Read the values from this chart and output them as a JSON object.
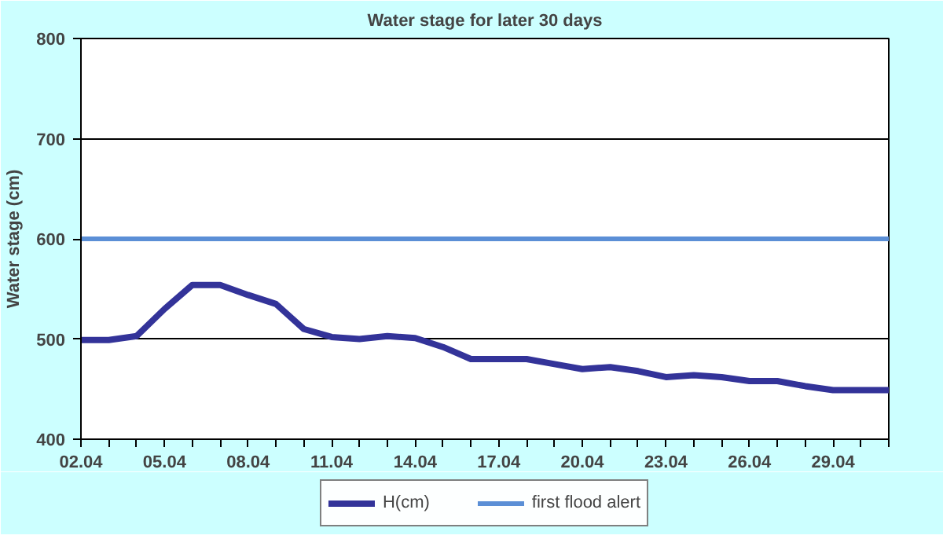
{
  "chart_data": {
    "type": "line",
    "title": "Water stage for later 30 days",
    "ylabel": "Water stage (cm)",
    "categories": [
      "02.04",
      null,
      null,
      "05.04",
      null,
      null,
      "08.04",
      null,
      null,
      "11.04",
      null,
      null,
      "14.04",
      null,
      null,
      "17.04",
      null,
      null,
      "20.04",
      null,
      null,
      "23.04",
      null,
      null,
      "26.04",
      null,
      null,
      "29.04",
      null,
      null
    ],
    "series": [
      {
        "name": "H(cm)",
        "color": "#333399",
        "values": [
          499,
          499,
          503,
          530,
          554,
          554,
          544,
          535,
          510,
          502,
          500,
          503,
          501,
          492,
          480,
          480,
          480,
          475,
          470,
          472,
          468,
          462,
          464,
          462,
          458,
          458,
          453,
          449,
          449,
          449
        ]
      }
    ],
    "ylim": [
      400,
      800
    ],
    "yticks": [
      400,
      500,
      600,
      700,
      800
    ],
    "grid": "y",
    "legend": "bottom",
    "marker": "none",
    "line_style": "solid",
    "ref_lines": [
      {
        "axis": "y",
        "value": 600,
        "label": "first flood alert",
        "color": "#5b8fd6"
      }
    ]
  }
}
